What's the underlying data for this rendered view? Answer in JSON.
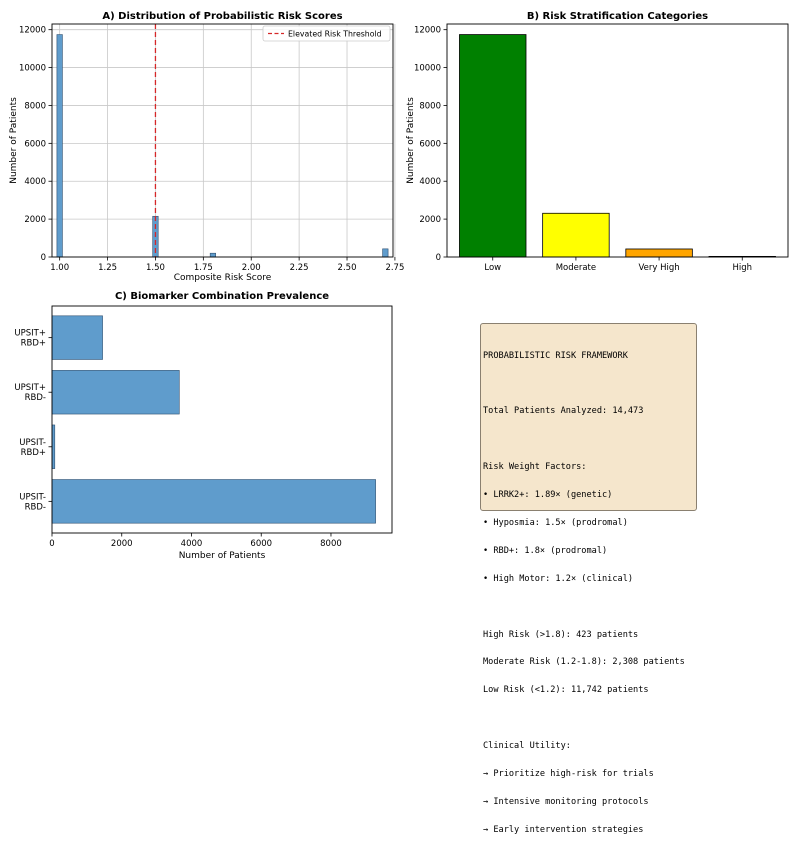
{
  "chart_data": [
    {
      "type": "bar",
      "variant": "histogram",
      "title": "A) Distribution of Probabilistic Risk Scores",
      "xlabel": "Composite Risk Score",
      "ylabel": "Number of Patients",
      "xlim": [
        0.96,
        2.74
      ],
      "ylim": [
        0,
        12300
      ],
      "xticks": [
        "1.00",
        "1.25",
        "1.50",
        "1.75",
        "2.00",
        "2.25",
        "2.50",
        "2.75"
      ],
      "yticks": [
        "0",
        "2000",
        "4000",
        "6000",
        "8000",
        "10000",
        "12000"
      ],
      "grid": true,
      "bar_color": "#5f9ccc",
      "bins": [
        {
          "x": 1.0,
          "value": 11742
        },
        {
          "x": 1.5,
          "value": 2150
        },
        {
          "x": 1.8,
          "value": 200
        },
        {
          "x": 2.7,
          "value": 430
        }
      ],
      "threshold": {
        "x": 1.5,
        "label": "Elevated Risk Threshold",
        "color": "#d62728"
      },
      "legend": "top-right"
    },
    {
      "type": "bar",
      "title": "B) Risk Stratification Categories",
      "xlabel": "",
      "ylabel": "Number of Patients",
      "categories": [
        "Low",
        "Moderate",
        "Very High",
        "High"
      ],
      "values": [
        11742,
        2308,
        423,
        0
      ],
      "colors": [
        "#008000",
        "#ffff00",
        "#ffa500",
        "#d62728"
      ],
      "yticks": [
        "0",
        "2000",
        "4000",
        "6000",
        "8000",
        "10000",
        "12000"
      ],
      "ylim": [
        0,
        12300
      ],
      "grid": false
    },
    {
      "type": "bar",
      "orientation": "horizontal",
      "title": "C) Biomarker Combination Prevalence",
      "xlabel": "Number of Patients",
      "ylabel": "",
      "categories": [
        "UPSIT+\nRBD+",
        "UPSIT+\nRBD-",
        "UPSIT-\nRBD+",
        "UPSIT-\nRBD-"
      ],
      "values": [
        1450,
        3650,
        80,
        9280
      ],
      "xticks": [
        "0",
        "2000",
        "4000",
        "6000",
        "8000"
      ],
      "xlim": [
        0,
        9750
      ],
      "bar_color": "#5f9ccc",
      "grid": false
    }
  ],
  "info_box": {
    "lines": [
      "PROBABILISTIC RISK FRAMEWORK",
      "",
      "Total Patients Analyzed: 14,473",
      "",
      "Risk Weight Factors:",
      "• LRRK2+: 1.89× (genetic)",
      "• Hyposmia: 1.5× (prodromal)",
      "• RBD+: 1.8× (prodromal)",
      "• High Motor: 1.2× (clinical)",
      "",
      "High Risk (>1.8): 423 patients",
      "Moderate Risk (1.2-1.8): 2,308 patients",
      "Low Risk (<1.2): 11,742 patients",
      "",
      "Clinical Utility:",
      "→ Prioritize high-risk for trials",
      "→ Intensive monitoring protocols",
      "→ Early intervention strategies"
    ]
  }
}
